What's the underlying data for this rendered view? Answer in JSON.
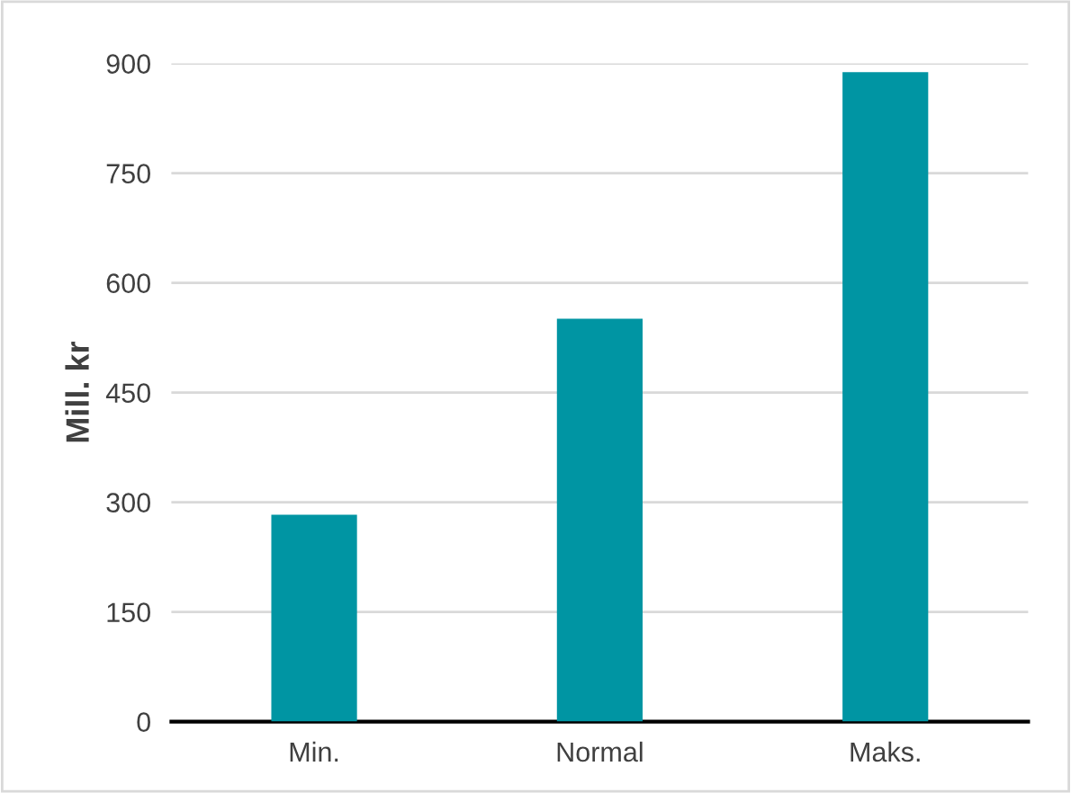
{
  "chart_data": {
    "type": "bar",
    "ylabel": "Mill. kr",
    "categories": [
      "Min.",
      "Normal",
      "Maks."
    ],
    "values": [
      283,
      551,
      888
    ],
    "color": "#0095a3",
    "ylim": [
      0,
      900
    ],
    "yticks": [
      0,
      150,
      300,
      450,
      600,
      750,
      900
    ],
    "grid": "y",
    "legend": false
  }
}
